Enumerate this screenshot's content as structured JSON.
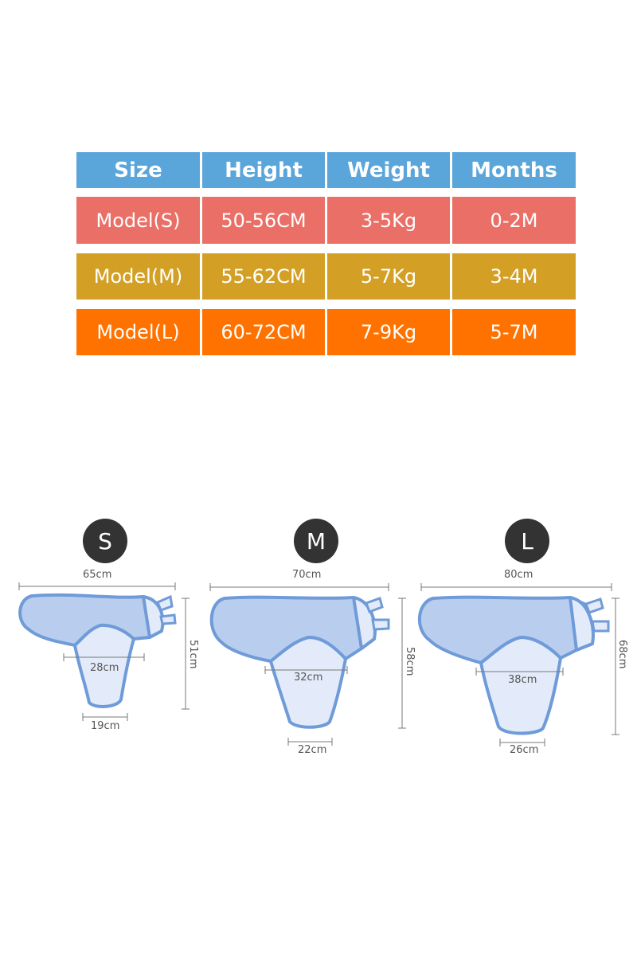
{
  "colors": {
    "header": "#5aa5da",
    "model_s": "#ea6f66",
    "model_m": "#d3a025",
    "model_l": "#ff7200",
    "swaddle_fill": "#b9cdee",
    "swaddle_light": "#e3ebfa",
    "swaddle_stroke": "#6f9bd8"
  },
  "table": {
    "headers": [
      "Size",
      "Height",
      "Weight",
      "Months"
    ],
    "rows": [
      [
        "Model(S)",
        "50-56CM",
        "3-5Kg",
        "0-2M"
      ],
      [
        "Model(M)",
        "55-62CM",
        "5-7Kg",
        "3-4M"
      ],
      [
        "Model(L)",
        "60-72CM",
        "7-9Kg",
        "5-7M"
      ]
    ]
  },
  "diagrams": [
    {
      "size": "S",
      "width": "65cm",
      "height": "51cm",
      "waist": "28cm",
      "bottom": "19cm"
    },
    {
      "size": "M",
      "width": "70cm",
      "height": "58cm",
      "waist": "32cm",
      "bottom": "22cm"
    },
    {
      "size": "L",
      "width": "80cm",
      "height": "68cm",
      "waist": "38cm",
      "bottom": "26cm"
    }
  ]
}
